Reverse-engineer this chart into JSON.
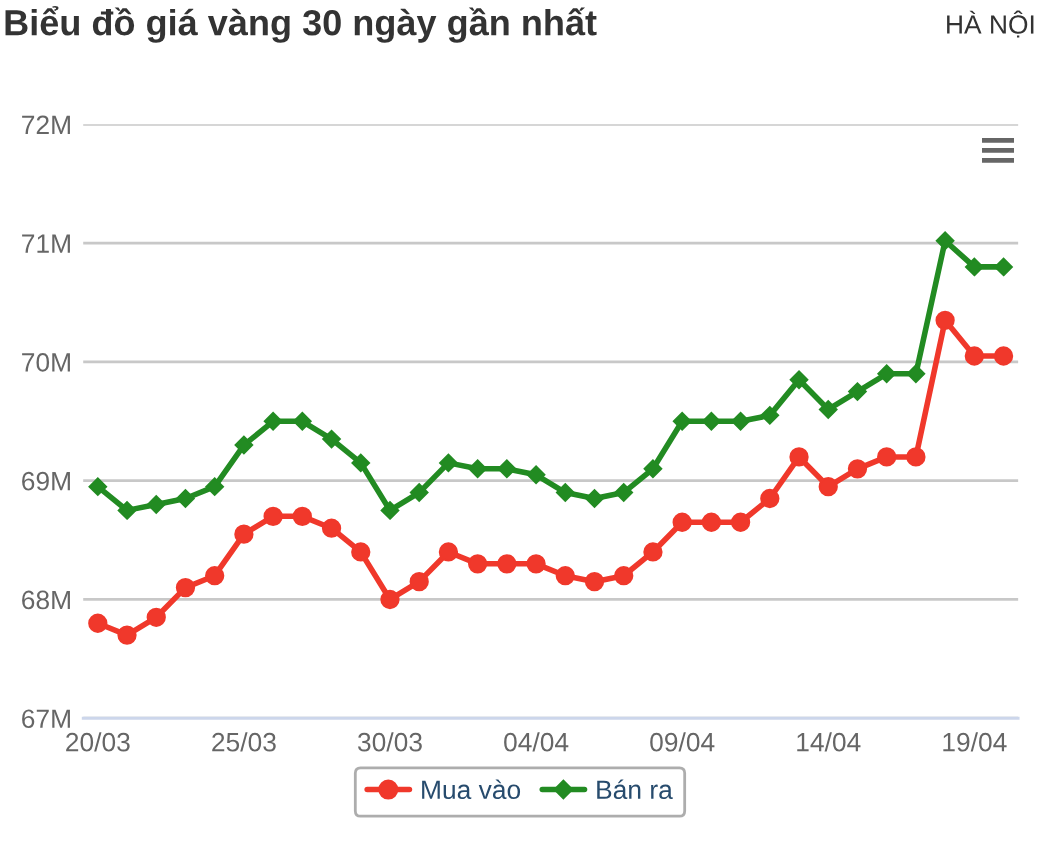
{
  "chart_data": {
    "type": "line",
    "title": "Biểu đồ giá vàng 30 ngày gần nhất",
    "subtitle": "HÀ NỘI",
    "categories": [
      "20/03",
      null,
      null,
      null,
      null,
      "25/03",
      null,
      null,
      null,
      null,
      "30/03",
      null,
      null,
      null,
      null,
      "04/04",
      null,
      null,
      null,
      null,
      "09/04",
      null,
      null,
      null,
      null,
      "14/04",
      null,
      null,
      null,
      null,
      "19/04",
      null
    ],
    "series": [
      {
        "name": "Mua vào",
        "color": "#f0382b",
        "marker": "circle",
        "values": [
          67.8,
          67.7,
          67.85,
          68.1,
          68.2,
          68.55,
          68.7,
          68.7,
          68.6,
          68.4,
          68.0,
          68.15,
          68.4,
          68.3,
          68.3,
          68.3,
          68.2,
          68.15,
          68.2,
          68.4,
          68.65,
          68.65,
          68.65,
          68.85,
          69.2,
          68.95,
          69.1,
          69.2,
          69.2,
          70.35,
          70.05,
          70.05
        ]
      },
      {
        "name": "Bán ra",
        "color": "#228b22",
        "marker": "diamond",
        "values": [
          68.95,
          68.75,
          68.8,
          68.85,
          68.95,
          69.3,
          69.5,
          69.5,
          69.35,
          69.15,
          68.75,
          68.9,
          69.15,
          69.1,
          69.1,
          69.05,
          68.9,
          68.85,
          68.9,
          69.1,
          69.5,
          69.5,
          69.5,
          69.55,
          69.85,
          69.6,
          69.75,
          69.9,
          69.9,
          71.02,
          70.8,
          70.8
        ]
      }
    ],
    "ylim": [
      67,
      72
    ],
    "yticks": [
      {
        "value": 67,
        "label": "67M"
      },
      {
        "value": 68,
        "label": "68M"
      },
      {
        "value": 69,
        "label": "69M"
      },
      {
        "value": 70,
        "label": "70M"
      },
      {
        "value": 71,
        "label": "71M"
      },
      {
        "value": 72,
        "label": "72M"
      }
    ],
    "grid": "y",
    "legend": "bottom",
    "line_style": "solid"
  }
}
